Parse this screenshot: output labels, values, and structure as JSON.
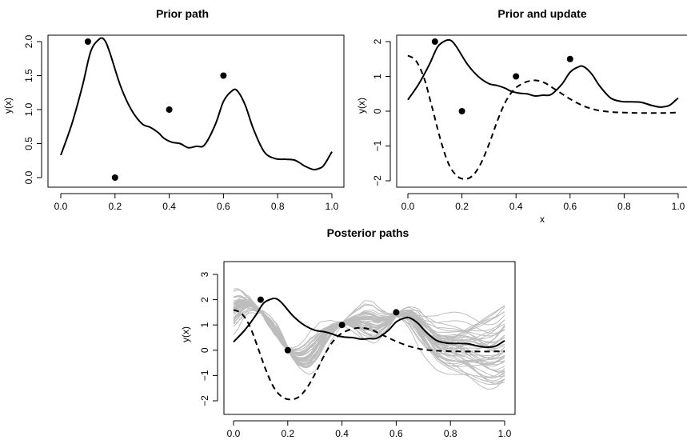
{
  "chart_data": [
    {
      "type": "line",
      "title": "Prior path",
      "xlabel": "",
      "ylabel": "y(x)",
      "xlim": [
        0,
        1
      ],
      "ylim": [
        0,
        2
      ],
      "x_ticks": [
        "0.0",
        "0.2",
        "0.4",
        "0.6",
        "0.8",
        "1.0"
      ],
      "y_ticks": [
        "0.0",
        "0.5",
        "1.0",
        "1.5",
        "2.0"
      ],
      "grid": false,
      "series": [
        {
          "style": "solid",
          "color": "#000000",
          "x": [
            0.0,
            0.04,
            0.08,
            0.11,
            0.14,
            0.16,
            0.18,
            0.22,
            0.26,
            0.3,
            0.33,
            0.36,
            0.38,
            0.41,
            0.44,
            0.47,
            0.5,
            0.53,
            0.57,
            0.6,
            0.63,
            0.65,
            0.68,
            0.71,
            0.75,
            0.79,
            0.83,
            0.86,
            0.88,
            0.9,
            0.93,
            0.95,
            0.97,
            1.0
          ],
          "y": [
            0.33,
            0.78,
            1.35,
            1.85,
            2.03,
            2.03,
            1.85,
            1.35,
            1.0,
            0.79,
            0.74,
            0.66,
            0.58,
            0.52,
            0.5,
            0.44,
            0.46,
            0.48,
            0.78,
            1.12,
            1.27,
            1.28,
            1.07,
            0.72,
            0.38,
            0.28,
            0.27,
            0.26,
            0.22,
            0.17,
            0.12,
            0.13,
            0.18,
            0.38
          ]
        }
      ],
      "points": {
        "x": [
          0.1,
          0.2,
          0.4,
          0.6
        ],
        "y": [
          2.0,
          0.0,
          1.0,
          1.5
        ]
      }
    },
    {
      "type": "line",
      "title": "Prior and update",
      "xlabel": "x",
      "ylabel": "y(x)",
      "xlim": [
        0,
        1
      ],
      "ylim": [
        -2,
        2
      ],
      "x_ticks": [
        "0.0",
        "0.2",
        "0.4",
        "0.6",
        "0.8",
        "1.0"
      ],
      "y_ticks": [
        "−2",
        "−1",
        "0",
        "1",
        "2"
      ],
      "grid": false,
      "series": [
        {
          "style": "solid",
          "color": "#000000",
          "x": [
            0.0,
            0.04,
            0.08,
            0.11,
            0.14,
            0.16,
            0.18,
            0.22,
            0.26,
            0.3,
            0.33,
            0.36,
            0.38,
            0.41,
            0.44,
            0.47,
            0.5,
            0.53,
            0.57,
            0.6,
            0.63,
            0.65,
            0.68,
            0.71,
            0.75,
            0.79,
            0.83,
            0.86,
            0.88,
            0.9,
            0.93,
            0.95,
            0.97,
            1.0
          ],
          "y": [
            0.33,
            0.78,
            1.35,
            1.85,
            2.03,
            2.03,
            1.85,
            1.35,
            1.0,
            0.79,
            0.74,
            0.66,
            0.58,
            0.52,
            0.5,
            0.44,
            0.46,
            0.48,
            0.78,
            1.12,
            1.27,
            1.28,
            1.07,
            0.72,
            0.38,
            0.28,
            0.27,
            0.26,
            0.22,
            0.17,
            0.12,
            0.13,
            0.18,
            0.38
          ]
        },
        {
          "style": "dashed",
          "color": "#000000",
          "x": [
            0.0,
            0.03,
            0.06,
            0.09,
            0.12,
            0.15,
            0.18,
            0.21,
            0.24,
            0.27,
            0.3,
            0.33,
            0.36,
            0.39,
            0.42,
            0.45,
            0.48,
            0.51,
            0.54,
            0.57,
            0.6,
            0.65,
            0.7,
            0.75,
            0.8,
            0.85,
            0.9,
            0.95,
            1.0
          ],
          "y": [
            1.6,
            1.45,
            0.95,
            0.1,
            -0.8,
            -1.5,
            -1.85,
            -1.95,
            -1.85,
            -1.5,
            -0.95,
            -0.3,
            0.25,
            0.6,
            0.78,
            0.87,
            0.88,
            0.8,
            0.65,
            0.5,
            0.35,
            0.15,
            0.03,
            -0.02,
            -0.04,
            -0.05,
            -0.05,
            -0.05,
            -0.04
          ]
        }
      ],
      "points": {
        "x": [
          0.1,
          0.2,
          0.4,
          0.6
        ],
        "y": [
          2.0,
          0.0,
          1.0,
          1.5
        ]
      }
    },
    {
      "type": "line",
      "title": "Posterior paths",
      "xlabel": "",
      "ylabel": "y(x)",
      "xlim": [
        0,
        1
      ],
      "ylim": [
        -2,
        3
      ],
      "x_ticks": [
        "0.0",
        "0.2",
        "0.4",
        "0.6",
        "0.8",
        "1.0"
      ],
      "y_ticks": [
        "−2",
        "−1",
        "0",
        "1",
        "2",
        "3"
      ],
      "grid": false,
      "posterior_path_count": 50,
      "posterior_color": "#bdbdbd",
      "series": [
        {
          "style": "solid",
          "color": "#000000",
          "x": [
            0.0,
            0.04,
            0.08,
            0.11,
            0.14,
            0.16,
            0.18,
            0.22,
            0.26,
            0.3,
            0.33,
            0.36,
            0.38,
            0.41,
            0.44,
            0.47,
            0.5,
            0.53,
            0.57,
            0.6,
            0.63,
            0.65,
            0.68,
            0.71,
            0.75,
            0.79,
            0.83,
            0.86,
            0.88,
            0.9,
            0.93,
            0.95,
            0.97,
            1.0
          ],
          "y": [
            0.33,
            0.78,
            1.35,
            1.85,
            2.03,
            2.03,
            1.85,
            1.35,
            1.0,
            0.79,
            0.74,
            0.66,
            0.58,
            0.52,
            0.5,
            0.44,
            0.46,
            0.48,
            0.78,
            1.12,
            1.27,
            1.28,
            1.07,
            0.72,
            0.38,
            0.28,
            0.27,
            0.26,
            0.22,
            0.17,
            0.12,
            0.13,
            0.18,
            0.38
          ]
        },
        {
          "style": "dashed",
          "color": "#000000",
          "x": [
            0.0,
            0.03,
            0.06,
            0.09,
            0.12,
            0.15,
            0.18,
            0.21,
            0.24,
            0.27,
            0.3,
            0.33,
            0.36,
            0.39,
            0.42,
            0.45,
            0.48,
            0.51,
            0.54,
            0.57,
            0.6,
            0.65,
            0.7,
            0.75,
            0.8,
            0.85,
            0.9,
            0.95,
            1.0
          ],
          "y": [
            1.6,
            1.45,
            0.95,
            0.1,
            -0.8,
            -1.5,
            -1.85,
            -1.95,
            -1.85,
            -1.5,
            -0.95,
            -0.3,
            0.25,
            0.6,
            0.78,
            0.87,
            0.88,
            0.8,
            0.65,
            0.5,
            0.35,
            0.15,
            0.03,
            -0.02,
            -0.04,
            -0.05,
            -0.05,
            -0.05,
            -0.04
          ]
        }
      ],
      "points": {
        "x": [
          0.1,
          0.2,
          0.4,
          0.6
        ],
        "y": [
          2.0,
          0.0,
          1.0,
          1.5
        ]
      }
    }
  ]
}
